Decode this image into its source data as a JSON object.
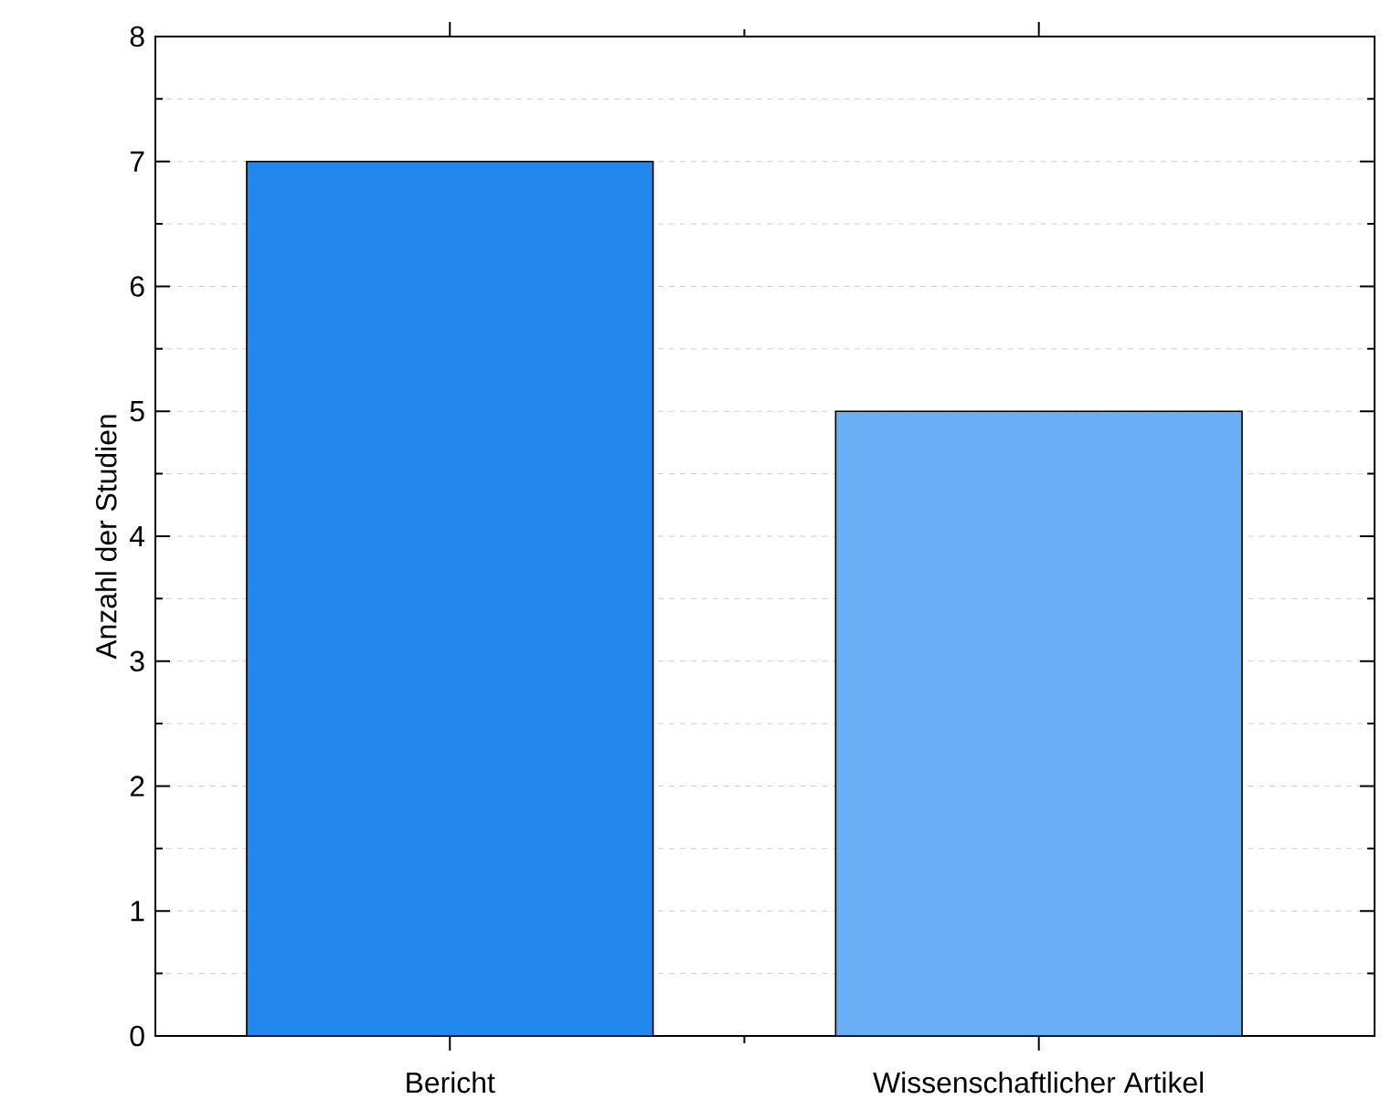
{
  "chart_data": {
    "type": "bar",
    "ylabel": "Anzahl der Studien",
    "categories": [
      "Bericht",
      "Wissenschaftlicher Artikel"
    ],
    "values": [
      7,
      5
    ],
    "colors": [
      "#2288ee",
      "#6aaef5"
    ],
    "ylim": [
      0,
      8
    ],
    "yticks": [
      0,
      1,
      2,
      3,
      4,
      5,
      6,
      7,
      8
    ],
    "grid": "y"
  }
}
